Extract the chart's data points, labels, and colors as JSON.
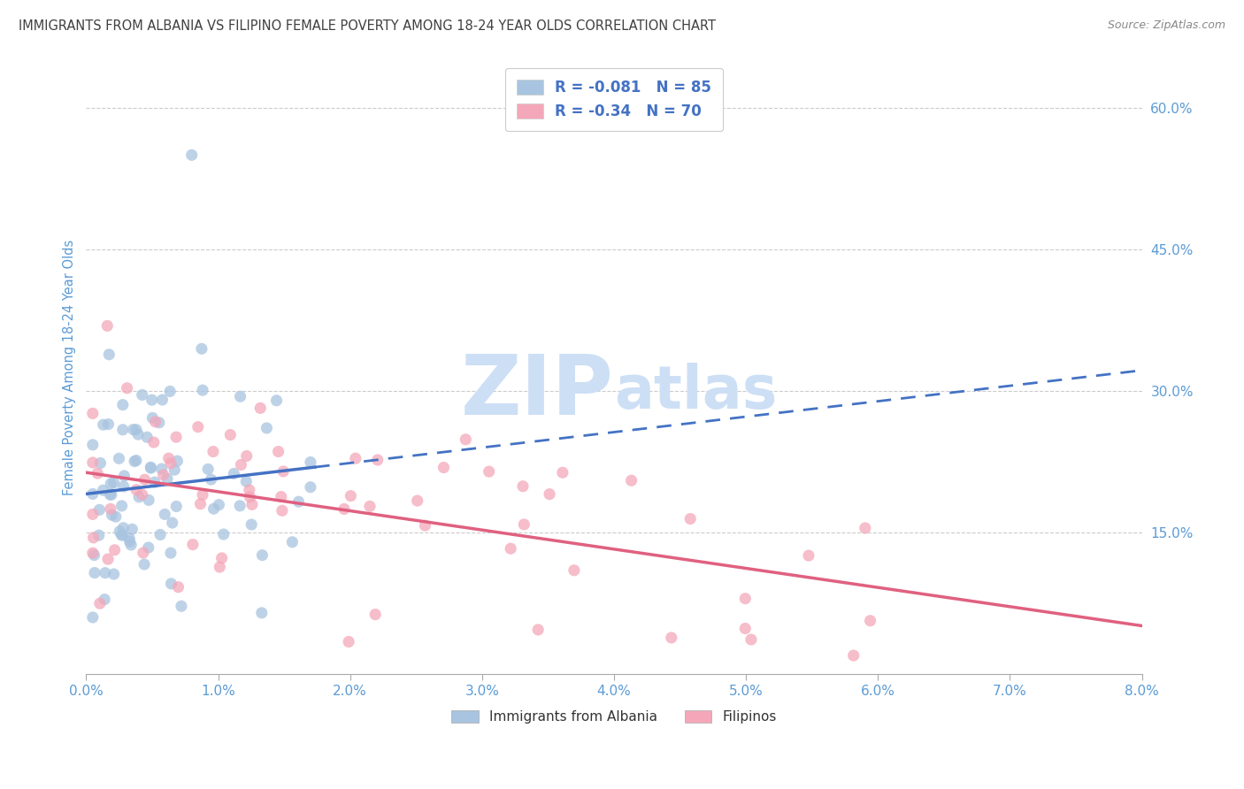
{
  "title": "IMMIGRANTS FROM ALBANIA VS FILIPINO FEMALE POVERTY AMONG 18-24 YEAR OLDS CORRELATION CHART",
  "source": "Source: ZipAtlas.com",
  "xlabel_albania": "Immigrants from Albania",
  "xlabel_filipino": "Filipinos",
  "ylabel": "Female Poverty Among 18-24 Year Olds",
  "xlim": [
    0.0,
    0.08
  ],
  "ylim": [
    0.0,
    0.65
  ],
  "xticks": [
    0.0,
    0.01,
    0.02,
    0.03,
    0.04,
    0.05,
    0.06,
    0.07,
    0.08
  ],
  "xtick_labels": [
    "0.0%",
    "1.0%",
    "2.0%",
    "3.0%",
    "4.0%",
    "5.0%",
    "6.0%",
    "7.0%",
    "8.0%"
  ],
  "yticks_right": [
    0.15,
    0.3,
    0.45,
    0.6
  ],
  "ytick_labels_right": [
    "15.0%",
    "30.0%",
    "45.0%",
    "60.0%"
  ],
  "R_albania": -0.081,
  "N_albania": 85,
  "R_filipino": -0.34,
  "N_filipino": 70,
  "albania_color": "#a8c4e0",
  "filipino_color": "#f4a7b9",
  "trend_albania_color": "#4472c4",
  "trend_filipino_color": "#e06080",
  "watermark_color": "#cddff5",
  "background_color": "#ffffff",
  "title_color": "#404040",
  "axis_label_color": "#5b9bd5",
  "grid_color": "#cccccc",
  "legend_text_color": "#4472c4"
}
